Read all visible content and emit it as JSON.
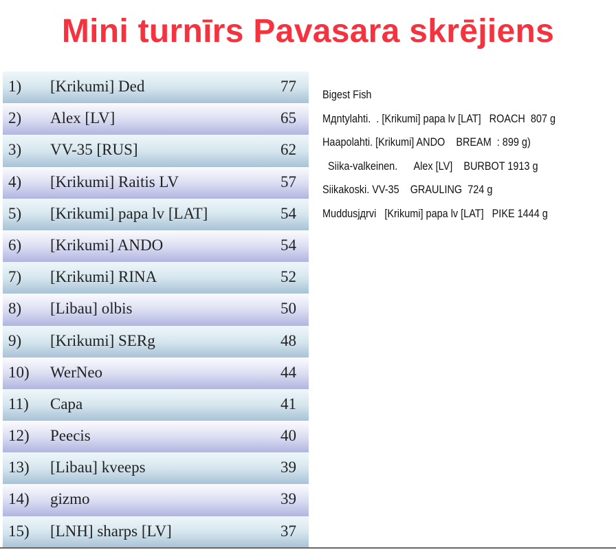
{
  "title": "Mini turnīrs Pavasara skrējiens",
  "standings": [
    {
      "rank": "1)",
      "name": "[Krikumi] Ded",
      "score": "77"
    },
    {
      "rank": "2)",
      "name": "Alex [LV]",
      "score": "65"
    },
    {
      "rank": "3)",
      "name": "VV-35 [RUS]",
      "score": "62"
    },
    {
      "rank": "4)",
      "name": "[Krikumi] Raitis LV",
      "score": "57"
    },
    {
      "rank": "5)",
      "name": "[Krikumi] papa lv [LAT]",
      "score": "54"
    },
    {
      "rank": "6)",
      "name": "[Krikumi] ANDO",
      "score": "54"
    },
    {
      "rank": "7)",
      "name": "[Krikumi] RINA",
      "score": "52"
    },
    {
      "rank": "8)",
      "name": "[Libau] olbis",
      "score": "50"
    },
    {
      "rank": "9)",
      "name": "[Krikumi] SERg",
      "score": "48"
    },
    {
      "rank": "10)",
      "name": "WerNeo",
      "score": "44"
    },
    {
      "rank": "11)",
      "name": "Capa",
      "score": "41"
    },
    {
      "rank": "12)",
      "name": "Peecis",
      "score": "40"
    },
    {
      "rank": "13)",
      "name": "[Libau] kveeps",
      "score": "39"
    },
    {
      "rank": "14)",
      "name": "gizmo",
      "score": "39"
    },
    {
      "rank": "15)",
      "name": "[LNH] sharps [LV]",
      "score": "37"
    }
  ],
  "biggest_fish": {
    "heading": "Bigest Fish",
    "lines": [
      "Mдntylahti.  . [Krikumi] papa lv [LAT]   ROACH  807 g",
      "Haapolahti. [Krikumi] ANDO    BREAM  : 899 g)",
      "  Siika-valkeinen.      Alex [LV]    BURBOT 1913 g",
      "Siikakoski. VV-35    GRAULING  724 g",
      "Muddusjдrvi   [Krikumi] papa lv [LAT]   PIKE 1444 g"
    ]
  },
  "colors": {
    "title": "#f5333f",
    "row_odd": "#a8c2d6",
    "row_even": "#b1b5e0"
  }
}
